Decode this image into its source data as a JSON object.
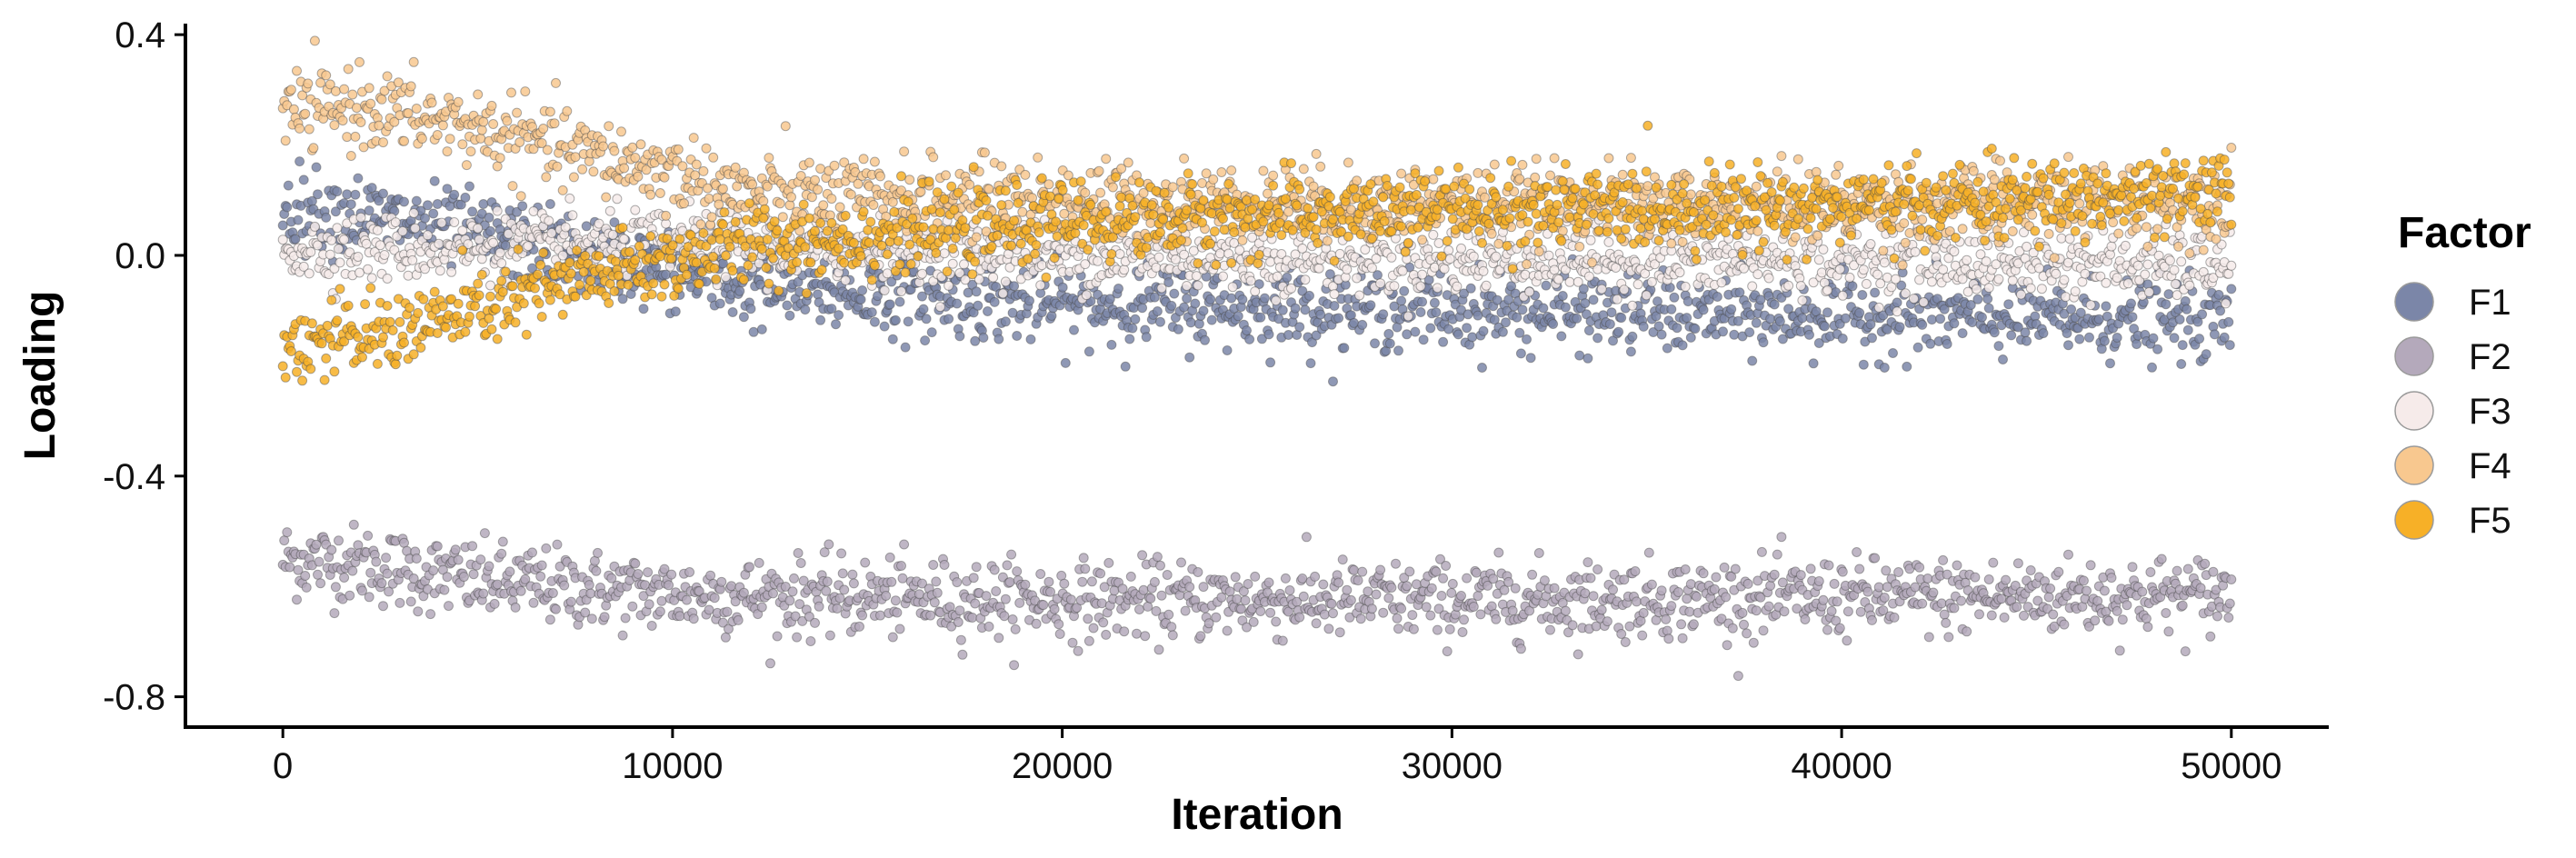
{
  "chart_data": {
    "type": "scatter",
    "xlabel": "Iteration",
    "ylabel": "Loading",
    "xlim": [
      -2500,
      52500
    ],
    "ylim": [
      -0.855,
      0.42
    ],
    "x_ticks": [
      0,
      10000,
      20000,
      30000,
      40000,
      50000
    ],
    "x_tick_labels": [
      "0",
      "10000",
      "20000",
      "30000",
      "40000",
      "50000"
    ],
    "y_ticks": [
      0.4,
      0.0,
      -0.4,
      -0.8
    ],
    "y_tick_labels": [
      "0.4",
      "0.0",
      "-0.4",
      "-0.8"
    ],
    "grid": false,
    "legend": {
      "title": "Factor",
      "position": "right"
    },
    "series": [
      {
        "name": "F1",
        "color": "#7b86a8",
        "trend_x": [
          0,
          2000,
          5000,
          8000,
          10000,
          12000,
          20000,
          30000,
          40000,
          50000
        ],
        "trend_y": [
          0.09,
          0.075,
          0.04,
          0.0,
          -0.03,
          -0.06,
          -0.09,
          -0.1,
          -0.11,
          -0.12
        ],
        "spread": 0.035
      },
      {
        "name": "F2",
        "color": "#b4a9bb",
        "trend_x": [
          0,
          2000,
          5000,
          10000,
          20000,
          30000,
          40000,
          50000
        ],
        "trend_y": [
          -0.55,
          -0.56,
          -0.59,
          -0.615,
          -0.625,
          -0.625,
          -0.62,
          -0.615
        ],
        "spread": 0.035
      },
      {
        "name": "F3",
        "color": "#f6ebea",
        "trend_x": [
          0,
          5000,
          10000,
          20000,
          30000,
          40000,
          50000
        ],
        "trend_y": [
          0.01,
          0.015,
          0.02,
          0.0,
          -0.01,
          -0.01,
          -0.02
        ],
        "spread": 0.03
      },
      {
        "name": "F4",
        "color": "#f8c88f",
        "trend_x": [
          0,
          2000,
          5000,
          8000,
          10000,
          12000,
          20000,
          30000,
          40000,
          50000
        ],
        "trend_y": [
          0.26,
          0.27,
          0.23,
          0.18,
          0.15,
          0.11,
          0.1,
          0.09,
          0.09,
          0.1
        ],
        "spread": 0.035
      },
      {
        "name": "F5",
        "color": "#f7b027",
        "trend_x": [
          0,
          2000,
          5000,
          8000,
          10000,
          12000,
          20000,
          30000,
          40000,
          50000
        ],
        "trend_y": [
          -0.16,
          -0.15,
          -0.1,
          -0.04,
          -0.01,
          0.02,
          0.06,
          0.08,
          0.09,
          0.11
        ],
        "spread": 0.035
      }
    ]
  }
}
